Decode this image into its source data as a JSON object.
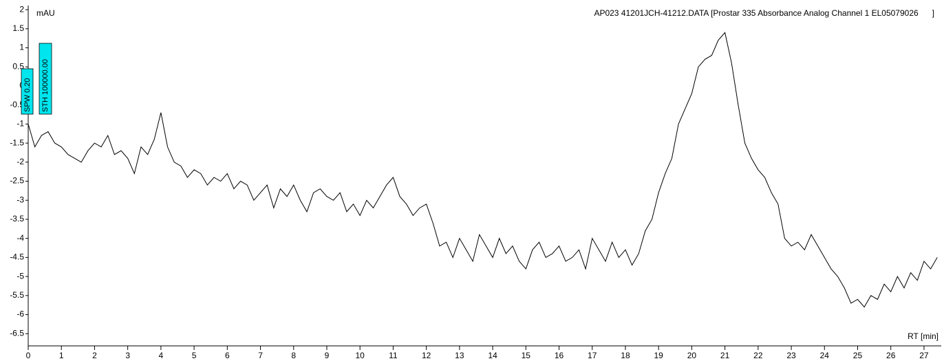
{
  "chart_data": {
    "type": "line",
    "title": "AP023 41201JCH-41212.DATA [Prostar 335 Absorbance Analog Channel 1 EL05079026      ]",
    "y_label": "mAU",
    "x_label": "RT [min]",
    "annotations": [
      "SPW 0.20",
      "STH 100000.00"
    ],
    "xlim": [
      0,
      27.52
    ],
    "ylim": [
      -6.82,
      2.11
    ],
    "xticks": [
      0,
      1,
      2,
      3,
      4,
      5,
      6,
      7,
      8,
      9,
      10,
      11,
      12,
      13,
      14,
      15,
      16,
      17,
      18,
      19,
      20,
      21,
      22,
      23,
      24,
      25,
      26,
      27
    ],
    "yticks": [
      2,
      1.5,
      1,
      0.5,
      0,
      -0.5,
      -1,
      -1.5,
      -2,
      -2.5,
      -3,
      -3.5,
      -4,
      -4.5,
      -5,
      -5.5,
      -6,
      -6.5
    ],
    "series": [
      {
        "name": "Absorbance",
        "color": "#000000",
        "x": [
          0,
          0.2,
          0.4,
          0.6,
          0.8,
          1,
          1.2,
          1.4,
          1.6,
          1.8,
          2,
          2.2,
          2.4,
          2.6,
          2.8,
          3,
          3.2,
          3.4,
          3.6,
          3.8,
          4,
          4.2,
          4.4,
          4.6,
          4.8,
          5,
          5.2,
          5.4,
          5.6,
          5.8,
          6,
          6.2,
          6.4,
          6.6,
          6.8,
          7,
          7.2,
          7.4,
          7.6,
          7.8,
          8,
          8.2,
          8.4,
          8.6,
          8.8,
          9,
          9.2,
          9.4,
          9.6,
          9.8,
          10,
          10.2,
          10.4,
          10.6,
          10.8,
          11,
          11.2,
          11.4,
          11.6,
          11.8,
          12,
          12.2,
          12.4,
          12.6,
          12.8,
          13,
          13.2,
          13.4,
          13.6,
          13.8,
          14,
          14.2,
          14.4,
          14.6,
          14.8,
          15,
          15.2,
          15.4,
          15.6,
          15.8,
          16,
          16.2,
          16.4,
          16.6,
          16.8,
          17,
          17.2,
          17.4,
          17.6,
          17.8,
          18,
          18.2,
          18.4,
          18.6,
          18.8,
          19,
          19.2,
          19.4,
          19.6,
          19.8,
          20,
          20.2,
          20.4,
          20.6,
          20.8,
          21,
          21.2,
          21.4,
          21.6,
          21.8,
          22,
          22.2,
          22.4,
          22.6,
          22.8,
          23,
          23.2,
          23.4,
          23.6,
          23.8,
          24,
          24.2,
          24.4,
          24.6,
          24.8,
          25,
          25.2,
          25.4,
          25.6,
          25.8,
          26,
          26.2,
          26.4,
          26.6,
          26.8,
          27,
          27.2,
          27.4
        ],
        "values": [
          -1.0,
          -1.6,
          -1.3,
          -1.2,
          -1.5,
          -1.6,
          -1.8,
          -1.9,
          -2.0,
          -1.7,
          -1.5,
          -1.6,
          -1.3,
          -1.8,
          -1.7,
          -1.9,
          -2.3,
          -1.6,
          -1.8,
          -1.4,
          -0.7,
          -1.6,
          -2.0,
          -2.1,
          -2.4,
          -2.2,
          -2.3,
          -2.6,
          -2.4,
          -2.5,
          -2.3,
          -2.7,
          -2.5,
          -2.6,
          -3.0,
          -2.8,
          -2.6,
          -3.2,
          -2.7,
          -2.9,
          -2.6,
          -3.0,
          -3.3,
          -2.8,
          -2.7,
          -2.9,
          -3.0,
          -2.8,
          -3.3,
          -3.1,
          -3.4,
          -3.0,
          -3.2,
          -2.9,
          -2.6,
          -2.4,
          -2.9,
          -3.1,
          -3.4,
          -3.2,
          -3.1,
          -3.6,
          -4.2,
          -4.1,
          -4.5,
          -4.0,
          -4.3,
          -4.6,
          -3.9,
          -4.2,
          -4.5,
          -4.0,
          -4.4,
          -4.2,
          -4.6,
          -4.8,
          -4.3,
          -4.1,
          -4.5,
          -4.4,
          -4.2,
          -4.6,
          -4.5,
          -4.3,
          -4.8,
          -4.0,
          -4.3,
          -4.6,
          -4.1,
          -4.5,
          -4.3,
          -4.7,
          -4.4,
          -3.8,
          -3.5,
          -2.8,
          -2.3,
          -1.9,
          -1.0,
          -0.6,
          -0.2,
          0.5,
          0.7,
          0.8,
          1.2,
          1.4,
          0.6,
          -0.5,
          -1.5,
          -1.9,
          -2.2,
          -2.4,
          -2.8,
          -3.1,
          -4.0,
          -4.2,
          -4.1,
          -4.3,
          -3.9,
          -4.2,
          -4.5,
          -4.8,
          -5.0,
          -5.3,
          -5.7,
          -5.6,
          -5.8,
          -5.5,
          -5.6,
          -5.2,
          -5.4,
          -5.0,
          -5.3,
          -4.9,
          -5.1,
          -4.6,
          -4.8,
          -4.5
        ]
      }
    ]
  }
}
